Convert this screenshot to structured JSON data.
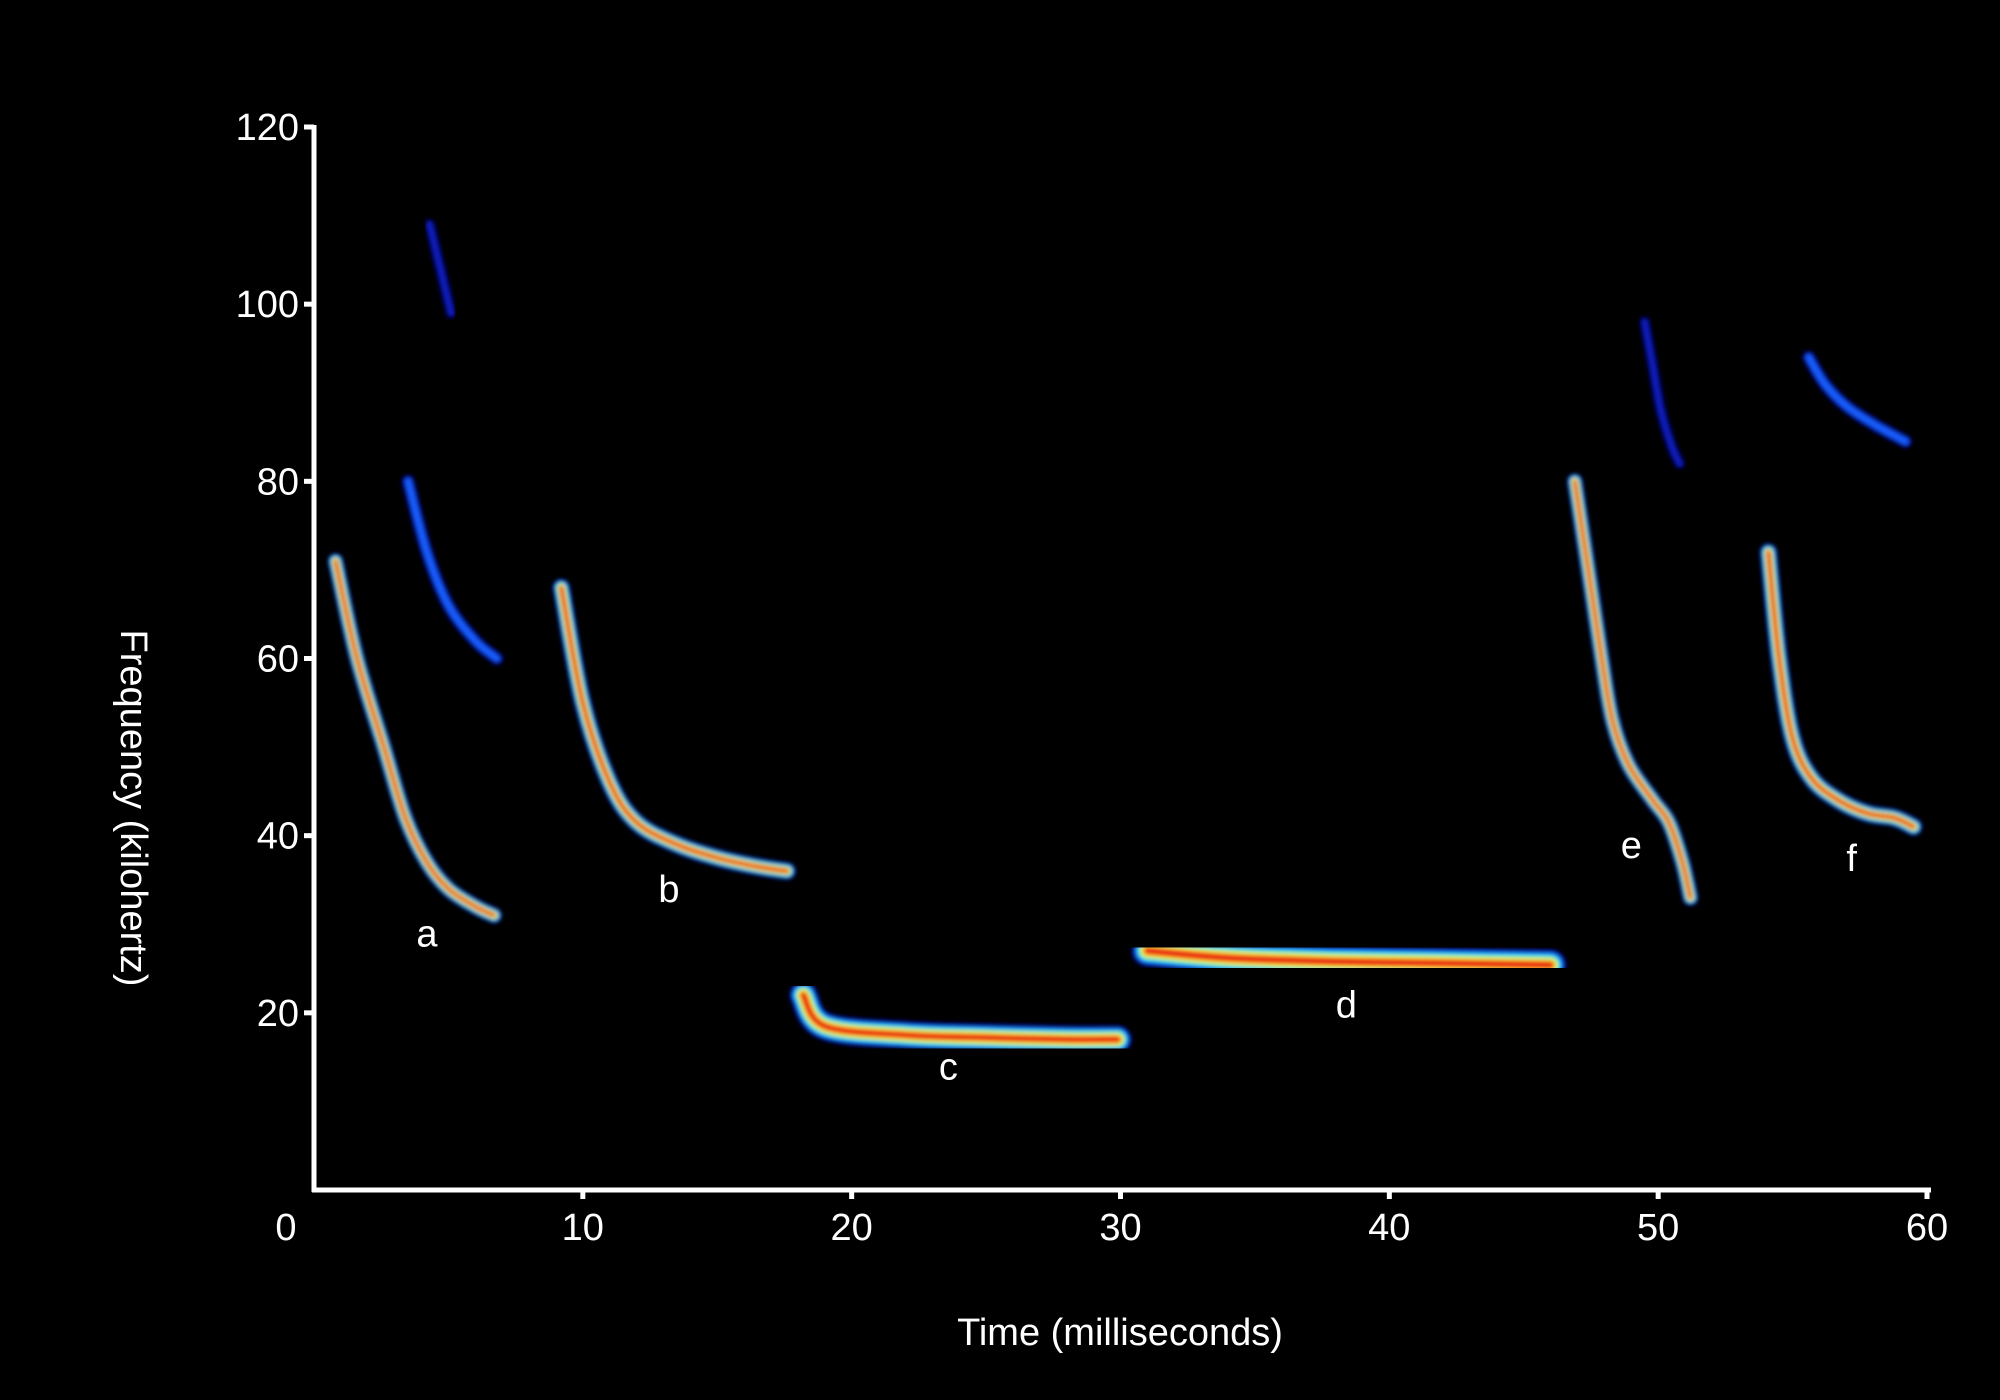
{
  "chart_data": {
    "type": "heatmap",
    "subtype": "spectrogram",
    "xlabel": "Time (milliseconds)",
    "ylabel": "Frequency (kilohertz)",
    "xlim": [
      0,
      60
    ],
    "ylim": [
      0,
      120
    ],
    "xticks": [
      0,
      10,
      20,
      30,
      40,
      50,
      60
    ],
    "yticks": [
      20,
      40,
      60,
      80,
      100,
      120
    ],
    "background": "#000000",
    "axis_color": "#ffffff",
    "colormap": [
      "#000066",
      "#0a1ab8",
      "#1460ff",
      "#19c8ff",
      "#4dff9e",
      "#ffff33",
      "#ff8800",
      "#e61919"
    ],
    "calls": [
      {
        "label": "a",
        "label_pos": [
          4.2,
          27.5
        ],
        "bands": [
          {
            "harmonic": "fundamental",
            "points": [
              [
                0.8,
                71
              ],
              [
                1.6,
                60
              ],
              [
                2.6,
                50
              ],
              [
                3.4,
                42
              ],
              [
                4.2,
                37
              ],
              [
                5.0,
                34
              ],
              [
                6.0,
                32
              ],
              [
                6.7,
                31
              ]
            ],
            "width": 1.8,
            "peak": 0.95
          },
          {
            "harmonic": "second",
            "points": [
              [
                3.5,
                80
              ],
              [
                4.2,
                72
              ],
              [
                5.0,
                66
              ],
              [
                6.0,
                62
              ],
              [
                6.8,
                60
              ]
            ],
            "width": 1.5,
            "peak": 0.3
          },
          {
            "harmonic": "third",
            "points": [
              [
                4.3,
                109
              ],
              [
                4.7,
                104
              ],
              [
                5.1,
                99
              ]
            ],
            "width": 1.2,
            "peak": 0.2
          }
        ]
      },
      {
        "label": "b",
        "label_pos": [
          13.2,
          32.5
        ],
        "bands": [
          {
            "harmonic": "fundamental",
            "points": [
              [
                9.2,
                68
              ],
              [
                10.0,
                55
              ],
              [
                11.0,
                46
              ],
              [
                12.0,
                41.5
              ],
              [
                13.5,
                39
              ],
              [
                15.0,
                37.5
              ],
              [
                16.5,
                36.5
              ],
              [
                17.6,
                36
              ]
            ],
            "width": 2.0,
            "peak": 0.95
          }
        ]
      },
      {
        "label": "c",
        "label_pos": [
          23.6,
          12.5
        ],
        "bands": [
          {
            "harmonic": "fundamental",
            "points": [
              [
                18.2,
                22
              ],
              [
                19.0,
                18.5
              ],
              [
                22.0,
                17.5
              ],
              [
                25.0,
                17.2
              ],
              [
                28.0,
                17.0
              ],
              [
                29.9,
                17.0
              ]
            ],
            "width": 3.2,
            "peak": 0.95
          }
        ]
      },
      {
        "label": "d",
        "label_pos": [
          38.4,
          19.5
        ],
        "bands": [
          {
            "harmonic": "fundamental",
            "points": [
              [
                31.0,
                27
              ],
              [
                34.0,
                26.2
              ],
              [
                38.0,
                25.8
              ],
              [
                42.0,
                25.6
              ],
              [
                46.0,
                25.4
              ]
            ],
            "width": 3.6,
            "peak": 0.95
          }
        ]
      },
      {
        "label": "e",
        "label_pos": [
          49.0,
          37.5
        ],
        "bands": [
          {
            "harmonic": "fundamental",
            "points": [
              [
                46.9,
                80
              ],
              [
                47.4,
                70
              ],
              [
                47.9,
                60
              ],
              [
                48.3,
                53
              ],
              [
                48.9,
                48
              ],
              [
                49.8,
                44
              ],
              [
                50.4,
                41.5
              ],
              [
                50.9,
                37
              ],
              [
                51.2,
                33
              ]
            ],
            "width": 1.8,
            "peak": 0.95
          },
          {
            "harmonic": "second",
            "points": [
              [
                49.5,
                98
              ],
              [
                49.8,
                93
              ],
              [
                50.1,
                88
              ],
              [
                50.5,
                84
              ],
              [
                50.8,
                82
              ]
            ],
            "width": 1.2,
            "peak": 0.2
          }
        ]
      },
      {
        "label": "f",
        "label_pos": [
          57.2,
          36
        ],
        "bands": [
          {
            "harmonic": "fundamental",
            "points": [
              [
                54.1,
                72
              ],
              [
                54.5,
                60
              ],
              [
                55.0,
                51
              ],
              [
                55.7,
                46.5
              ],
              [
                56.7,
                44
              ],
              [
                57.8,
                42.5
              ],
              [
                58.8,
                42
              ],
              [
                59.5,
                41
              ]
            ],
            "width": 2.0,
            "peak": 0.95
          },
          {
            "harmonic": "second",
            "points": [
              [
                55.6,
                94
              ],
              [
                56.2,
                91
              ],
              [
                57.0,
                88.5
              ],
              [
                58.0,
                86.5
              ],
              [
                59.2,
                84.5
              ]
            ],
            "width": 1.5,
            "peak": 0.25
          }
        ]
      }
    ]
  }
}
